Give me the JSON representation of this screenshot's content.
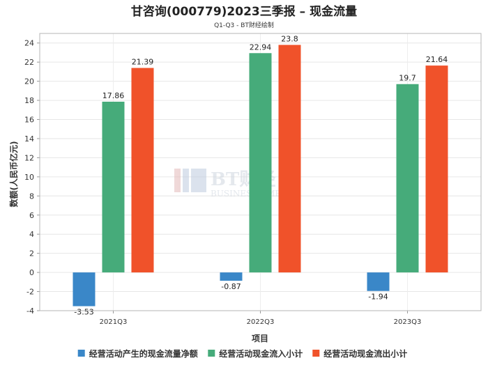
{
  "chart_data": {
    "type": "bar",
    "title": "甘咨询(000779)2023三季报 – 现金流量",
    "subtitle": "Q1-Q3 - BT财经绘制",
    "xlabel": "项目",
    "ylabel": "数额(人民币亿元)",
    "categories": [
      "2021Q3",
      "2022Q3",
      "2023Q3"
    ],
    "ylim": [
      -4,
      25
    ],
    "yticks": [
      -4,
      -2,
      0,
      2,
      4,
      6,
      8,
      10,
      12,
      14,
      16,
      18,
      20,
      22,
      24
    ],
    "grid": true,
    "legend_position": "bottom",
    "series": [
      {
        "name": "经营活动产生的现金流量净额",
        "color": "#3a87c8",
        "values": [
          -3.53,
          -0.87,
          -1.94
        ]
      },
      {
        "name": "经营活动现金流入小计",
        "color": "#46ab7a",
        "values": [
          17.86,
          22.94,
          19.7
        ]
      },
      {
        "name": "经营活动现金流出小计",
        "color": "#f0522a",
        "values": [
          21.39,
          23.8,
          21.64
        ]
      }
    ]
  },
  "watermark": {
    "logo_text": "BT财经",
    "sub_text": "BUSINESSTIMES"
  }
}
